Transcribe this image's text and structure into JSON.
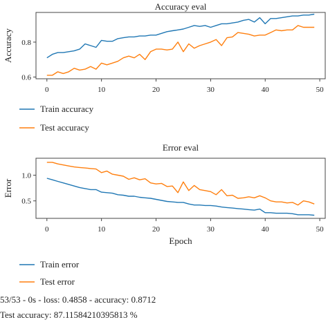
{
  "colors": {
    "train": "#1f77b4",
    "test": "#ff7f0e",
    "axis": "#444444"
  },
  "chart_data": [
    {
      "type": "line",
      "title": "Accuracy eval",
      "xlabel": "",
      "ylabel": "Accuracy",
      "xlim": [
        -2,
        51
      ],
      "ylim": [
        0.59,
        0.97
      ],
      "xticks": [
        0,
        10,
        20,
        30,
        40,
        50
      ],
      "yticks": [
        0.6,
        0.8
      ],
      "ytick_labels": [
        "0.6",
        "0.8"
      ],
      "legend_placement": "below",
      "series": [
        {
          "name": "Train accuracy",
          "x": [
            0,
            1,
            2,
            3,
            4,
            5,
            6,
            7,
            8,
            9,
            10,
            11,
            12,
            13,
            14,
            15,
            16,
            17,
            18,
            19,
            20,
            21,
            22,
            23,
            24,
            25,
            26,
            27,
            28,
            29,
            30,
            31,
            32,
            33,
            34,
            35,
            36,
            37,
            38,
            39,
            40,
            41,
            42,
            43,
            44,
            45,
            46,
            47,
            48,
            49
          ],
          "values": [
            0.71,
            0.73,
            0.74,
            0.74,
            0.745,
            0.75,
            0.76,
            0.79,
            0.78,
            0.77,
            0.81,
            0.805,
            0.805,
            0.82,
            0.825,
            0.83,
            0.83,
            0.835,
            0.835,
            0.84,
            0.84,
            0.85,
            0.86,
            0.865,
            0.87,
            0.875,
            0.885,
            0.895,
            0.89,
            0.895,
            0.885,
            0.895,
            0.905,
            0.905,
            0.91,
            0.915,
            0.925,
            0.93,
            0.915,
            0.94,
            0.905,
            0.935,
            0.935,
            0.94,
            0.945,
            0.95,
            0.95,
            0.955,
            0.955,
            0.96
          ]
        },
        {
          "name": "Test accuracy",
          "x": [
            0,
            1,
            2,
            3,
            4,
            5,
            6,
            7,
            8,
            9,
            10,
            11,
            12,
            13,
            14,
            15,
            16,
            17,
            18,
            19,
            20,
            21,
            22,
            23,
            24,
            25,
            26,
            27,
            28,
            29,
            30,
            31,
            32,
            33,
            34,
            35,
            36,
            37,
            38,
            39,
            40,
            41,
            42,
            43,
            44,
            45,
            46,
            47,
            48,
            49
          ],
          "values": [
            0.61,
            0.61,
            0.63,
            0.62,
            0.63,
            0.65,
            0.64,
            0.645,
            0.66,
            0.645,
            0.68,
            0.67,
            0.68,
            0.69,
            0.71,
            0.72,
            0.71,
            0.73,
            0.7,
            0.745,
            0.76,
            0.76,
            0.755,
            0.76,
            0.8,
            0.745,
            0.79,
            0.765,
            0.78,
            0.79,
            0.8,
            0.815,
            0.78,
            0.825,
            0.83,
            0.855,
            0.85,
            0.845,
            0.835,
            0.84,
            0.84,
            0.855,
            0.87,
            0.865,
            0.87,
            0.87,
            0.895,
            0.885,
            0.885,
            0.885
          ]
        }
      ]
    },
    {
      "type": "line",
      "title": "Error eval",
      "xlabel": "Epoch",
      "ylabel": "Error",
      "xlim": [
        -2,
        51
      ],
      "ylim": [
        0.16,
        1.33
      ],
      "xticks": [
        0,
        10,
        20,
        30,
        40,
        50
      ],
      "yticks": [
        0.5,
        1.0
      ],
      "ytick_labels": [
        "0.5",
        "1.0"
      ],
      "legend_placement": "below",
      "series": [
        {
          "name": "Train error",
          "x": [
            0,
            1,
            2,
            3,
            4,
            5,
            6,
            7,
            8,
            9,
            10,
            11,
            12,
            13,
            14,
            15,
            16,
            17,
            18,
            19,
            20,
            21,
            22,
            23,
            24,
            25,
            26,
            27,
            28,
            29,
            30,
            31,
            32,
            33,
            34,
            35,
            36,
            37,
            38,
            39,
            40,
            41,
            42,
            43,
            44,
            45,
            46,
            47,
            48,
            49
          ],
          "values": [
            0.94,
            0.91,
            0.88,
            0.85,
            0.82,
            0.79,
            0.76,
            0.74,
            0.72,
            0.72,
            0.67,
            0.66,
            0.65,
            0.62,
            0.61,
            0.59,
            0.59,
            0.57,
            0.56,
            0.55,
            0.53,
            0.51,
            0.49,
            0.48,
            0.47,
            0.47,
            0.44,
            0.42,
            0.42,
            0.41,
            0.41,
            0.4,
            0.38,
            0.37,
            0.36,
            0.35,
            0.34,
            0.33,
            0.32,
            0.34,
            0.27,
            0.27,
            0.26,
            0.26,
            0.26,
            0.25,
            0.23,
            0.23,
            0.23,
            0.22
          ]
        },
        {
          "name": "Test error",
          "x": [
            0,
            1,
            2,
            3,
            4,
            5,
            6,
            7,
            8,
            9,
            10,
            11,
            12,
            13,
            14,
            15,
            16,
            17,
            18,
            19,
            20,
            21,
            22,
            23,
            24,
            25,
            26,
            27,
            28,
            29,
            30,
            31,
            32,
            33,
            34,
            35,
            36,
            37,
            38,
            39,
            40,
            41,
            42,
            43,
            44,
            45,
            46,
            47,
            48,
            49
          ],
          "values": [
            1.25,
            1.25,
            1.22,
            1.2,
            1.18,
            1.16,
            1.15,
            1.14,
            1.13,
            1.12,
            1.05,
            1.08,
            1.02,
            1.0,
            0.98,
            0.92,
            0.95,
            0.91,
            0.93,
            0.85,
            0.83,
            0.84,
            0.78,
            0.79,
            0.66,
            0.87,
            0.7,
            0.8,
            0.72,
            0.7,
            0.68,
            0.62,
            0.72,
            0.6,
            0.61,
            0.55,
            0.56,
            0.58,
            0.56,
            0.6,
            0.56,
            0.5,
            0.48,
            0.48,
            0.46,
            0.47,
            0.42,
            0.5,
            0.48,
            0.44
          ]
        }
      ]
    }
  ],
  "log_lines": [
    "53/53 - 0s - loss: 0.4858 - accuracy: 0.8712",
    "Test accuracy: 87.11584210395813 %"
  ]
}
